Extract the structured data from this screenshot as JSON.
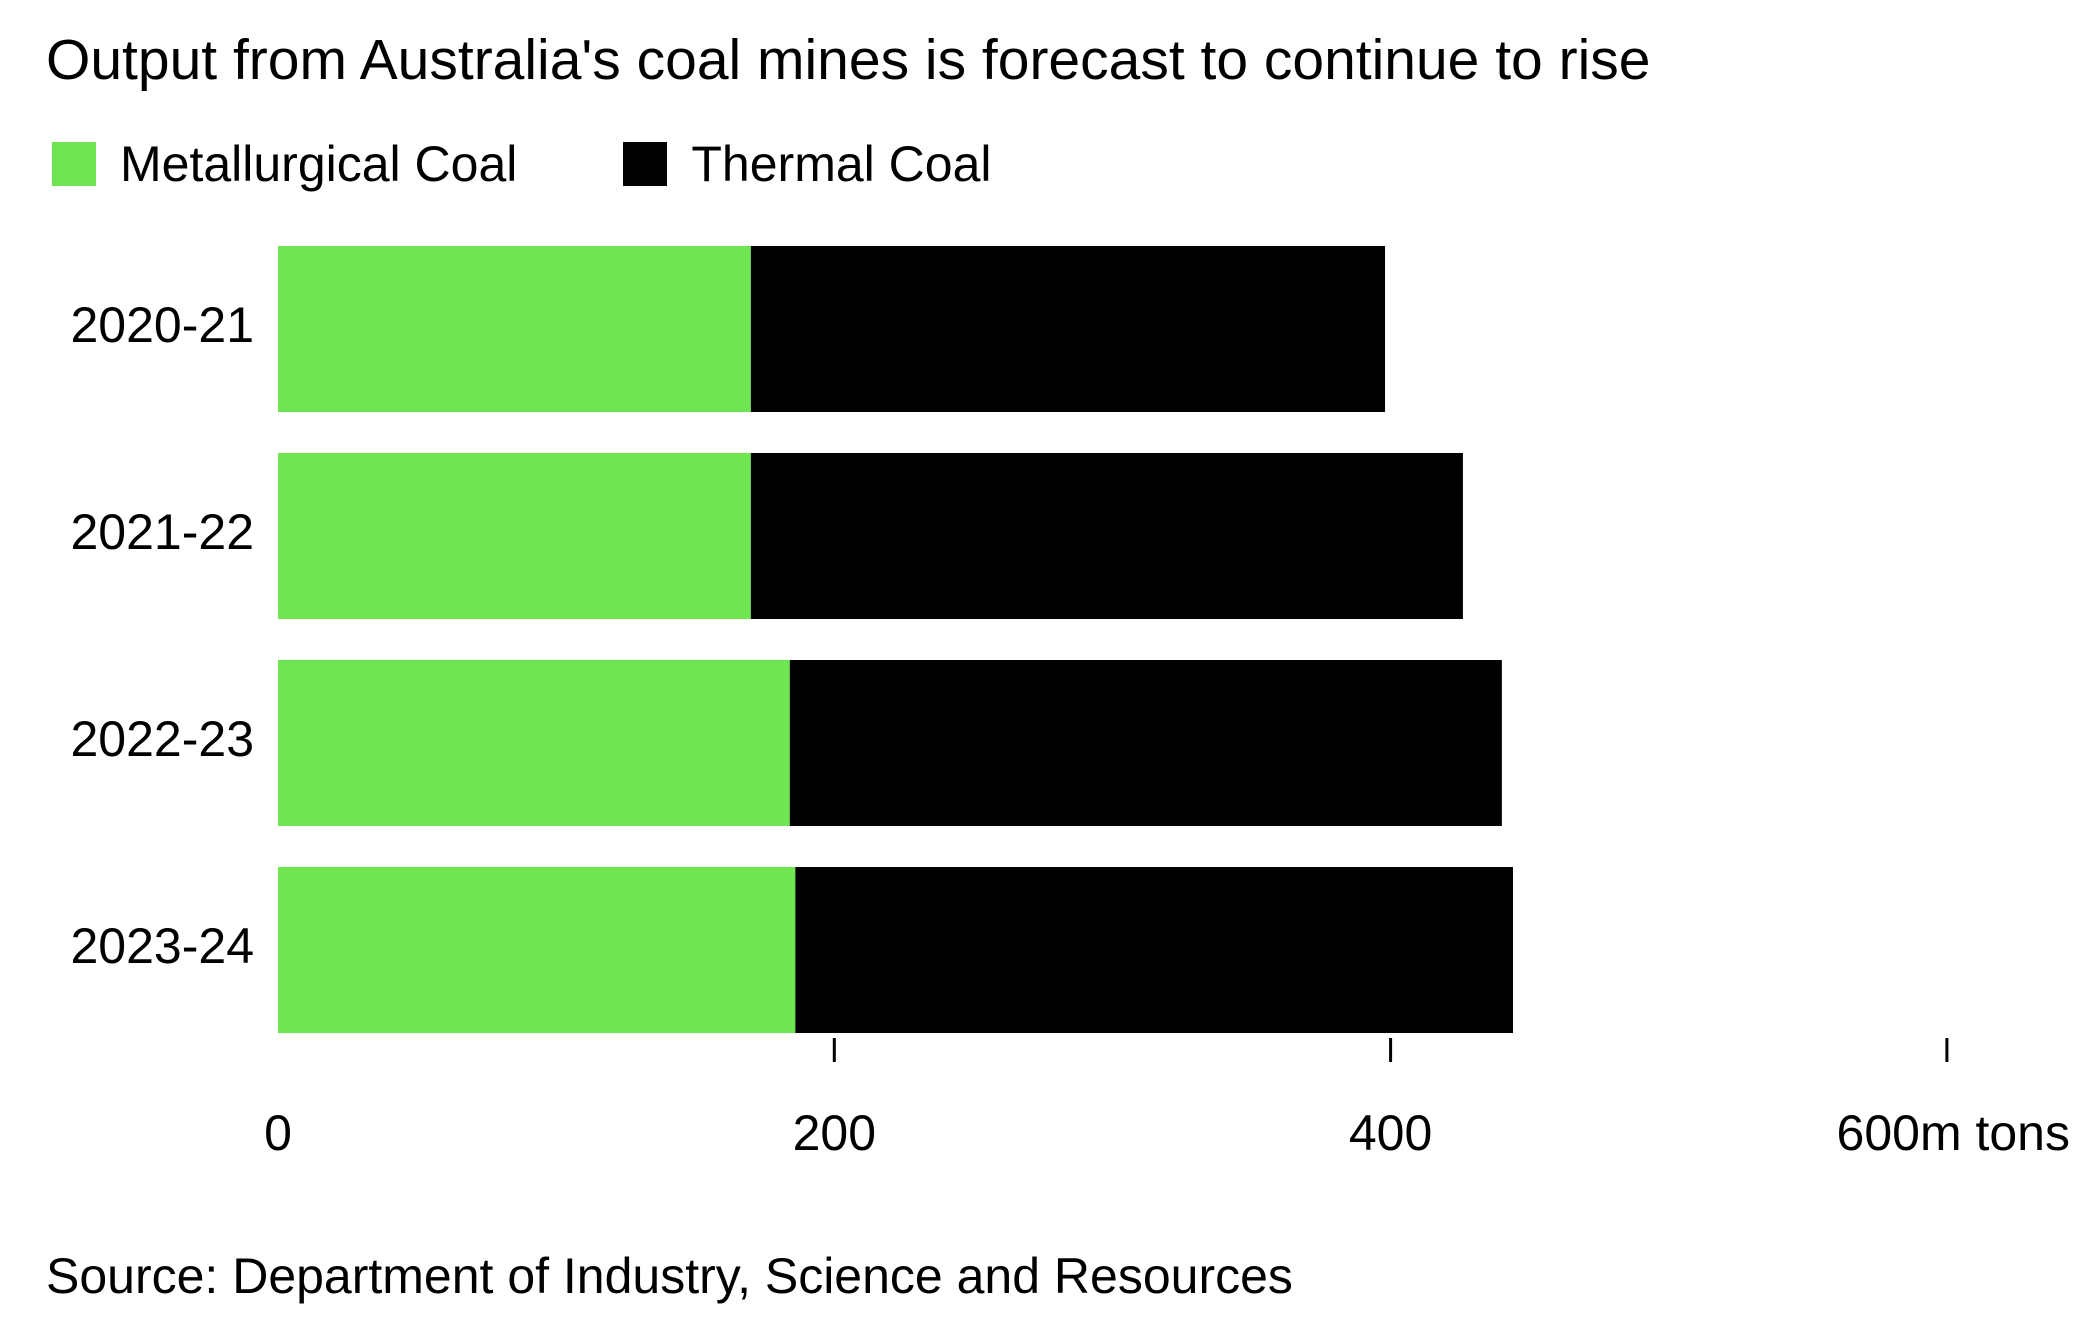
{
  "chart_data": {
    "type": "bar",
    "orientation": "horizontal",
    "stacked": true,
    "title": "Output from Australia's coal mines is forecast to continue to rise",
    "categories": [
      "2020-21",
      "2021-22",
      "2022-23",
      "2023-24"
    ],
    "series": [
      {
        "name": "Metallurgical Coal",
        "color": "#6ee651",
        "values": [
          170,
          170,
          184,
          186
        ]
      },
      {
        "name": "Thermal Coal",
        "color": "#000000",
        "values": [
          228,
          256,
          256,
          258
        ]
      }
    ],
    "xlim": [
      0,
      600
    ],
    "xticks": [
      {
        "value": 0,
        "label": "0"
      },
      {
        "value": 200,
        "label": "200"
      },
      {
        "value": 400,
        "label": "400"
      },
      {
        "value": 600,
        "label": "600m tons"
      }
    ],
    "grid": false,
    "legend_position": "top-left",
    "source": "Source: Department of Industry, Science and Resources"
  }
}
